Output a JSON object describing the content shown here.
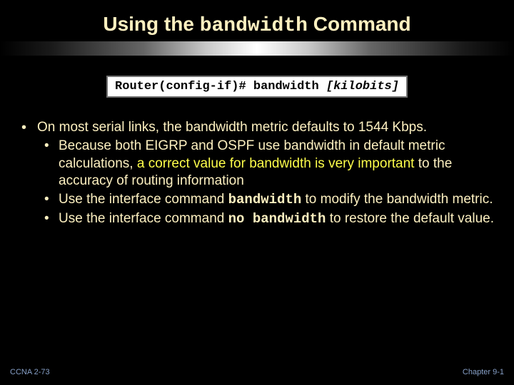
{
  "colors": {
    "background": "#000000",
    "title_text": "#fdf0c0",
    "body_text": "#fdf0c0",
    "highlight": "#ffff4a",
    "cmd_box_bg": "#ffffff",
    "cmd_box_border": "#707070",
    "cmd_box_text": "#000000",
    "footer_text": "#87a0c8"
  },
  "typography": {
    "title_fontsize": 28,
    "body_fontsize": 19,
    "cmd_box_fontsize": 17,
    "footer_fontsize": 11,
    "mono_family": "Courier New"
  },
  "title": {
    "prefix": "Using the ",
    "command": "bandwidth",
    "suffix": " Command"
  },
  "command_box": {
    "prompt": "Router(config-if)# bandwidth ",
    "param": "[kilobits]"
  },
  "bullets": {
    "main": "On most serial links, the bandwidth metric defaults to 1544 Kbps.",
    "sub1_a": "Because both EIGRP and OSPF use bandwidth in default metric calculations, ",
    "sub1_b": "a correct value for bandwidth is very important",
    "sub1_c": " to the accuracy of routing information",
    "sub2_a": "Use the interface command ",
    "sub2_b": "bandwidth",
    "sub2_c": " to modify the bandwidth metric.",
    "sub3_a": "Use the interface command ",
    "sub3_b": "no bandwidth",
    "sub3_c": " to restore the default value."
  },
  "footer": {
    "left": "CCNA 2-73",
    "right": "Chapter  9-1"
  }
}
